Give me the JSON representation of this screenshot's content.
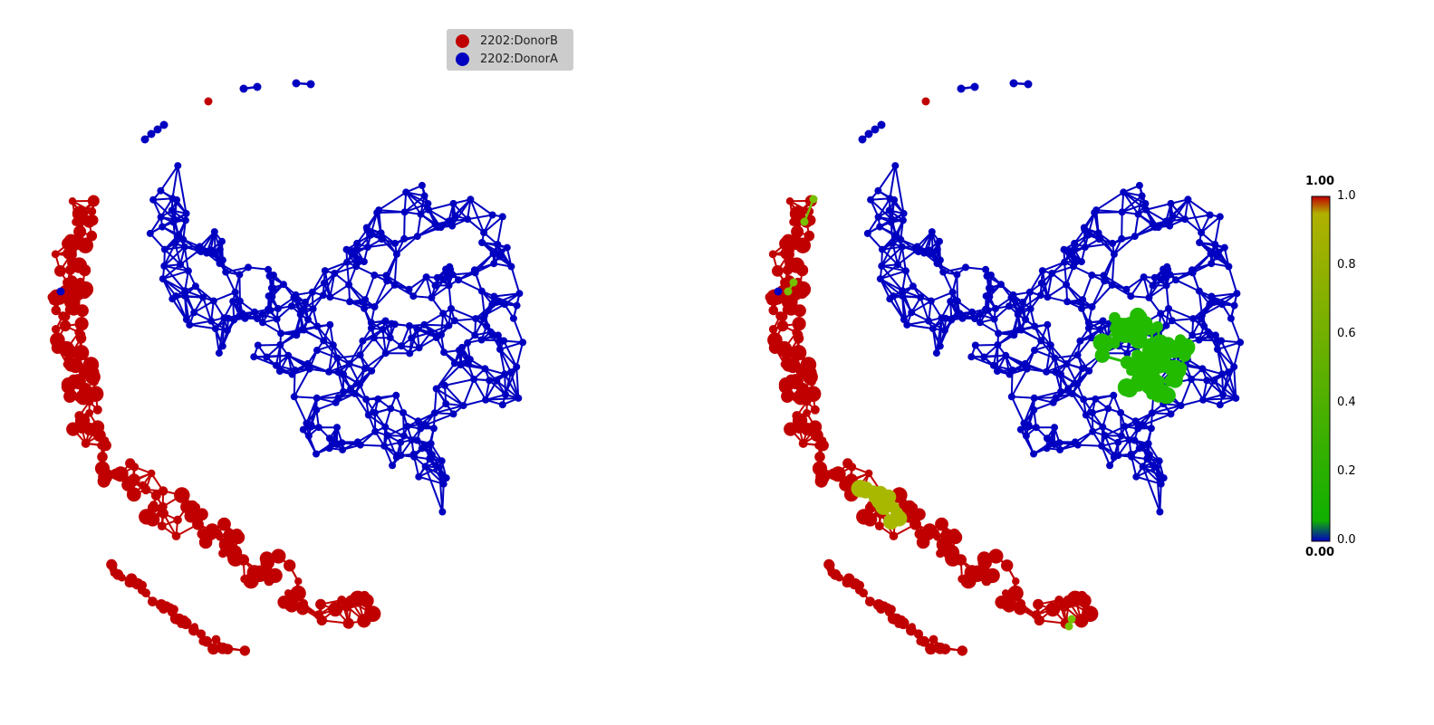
{
  "legend": {
    "items": [
      {
        "label": "2202:DonorB",
        "color": "#c00000"
      },
      {
        "label": "2202:DonorA",
        "color": "#0000c0"
      }
    ]
  },
  "colorbar": {
    "top_label": "1.00",
    "bottom_label": "0.00",
    "ticks": [
      "1.0",
      "0.8",
      "0.6",
      "0.4",
      "0.2",
      "0.0"
    ],
    "colors": [
      "#c00000",
      "#b0b000",
      "#10b000",
      "#0000c0"
    ]
  },
  "colors": {
    "donorA": "#0000c0",
    "donorB": "#c00000",
    "highlight_green": "#22bb00",
    "highlight_olive": "#a8b800",
    "highlight_lime": "#77c000"
  }
}
